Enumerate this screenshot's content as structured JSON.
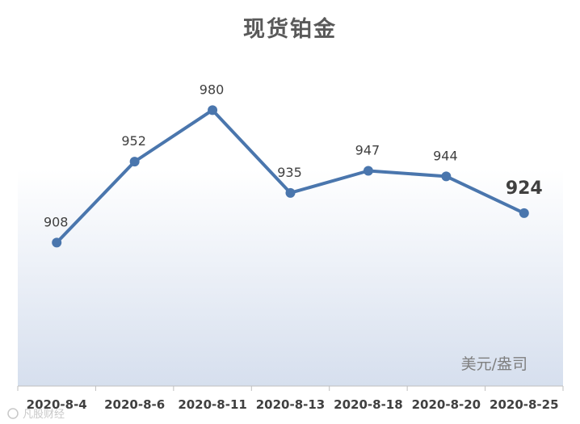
{
  "chart_data": {
    "type": "line",
    "title": "现货铂金",
    "unit_label": "美元/盎司",
    "categories": [
      "2020-8-4",
      "2020-8-6",
      "2020-8-11",
      "2020-8-13",
      "2020-8-18",
      "2020-8-20",
      "2020-8-25"
    ],
    "series": [
      {
        "values": [
          908,
          952,
          980,
          935,
          947,
          944,
          924
        ]
      }
    ],
    "ylim": [
      830,
      1010
    ],
    "grid": false,
    "highlight_last": true,
    "line_color": "#4a76ad",
    "background_gradient": [
      "#ffffff",
      "#d6dfee"
    ]
  },
  "watermark": "凡股财经"
}
